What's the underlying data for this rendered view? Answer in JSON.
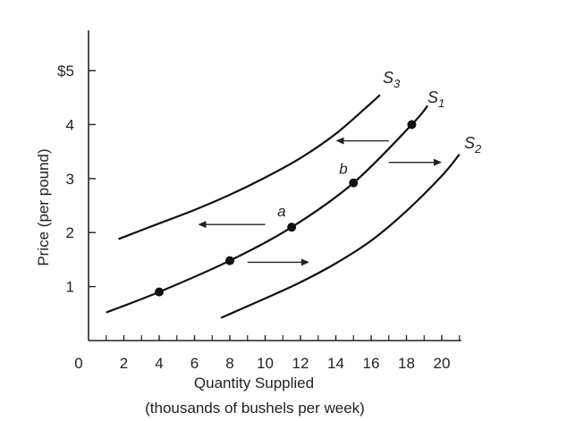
{
  "chart_data": {
    "type": "line",
    "xlabel": "Quantity Supplied",
    "xlabel_sub": "(thousands of bushels per week)",
    "ylabel": "Price (per pound)",
    "origin_label": "0",
    "xlim": [
      0,
      21
    ],
    "ylim": [
      0,
      5.7
    ],
    "x_ticks": [
      2,
      4,
      6,
      8,
      10,
      12,
      14,
      16,
      18,
      20
    ],
    "x_tick_labels": [
      "2",
      "4",
      "6",
      "8",
      "10",
      "12",
      "14",
      "16",
      "18",
      "20"
    ],
    "y_ticks": [
      1,
      2,
      3,
      4,
      5
    ],
    "y_tick_labels": [
      "1",
      "2",
      "3",
      "4",
      "$5"
    ],
    "grid": false,
    "series": [
      {
        "name": "S",
        "name_sub": "3",
        "color": "#111111",
        "x": [
          1.7,
          4,
          6,
          8,
          10,
          12,
          14,
          16,
          16.5
        ],
        "y": [
          1.88,
          2.17,
          2.42,
          2.7,
          3.02,
          3.38,
          3.83,
          4.4,
          4.55
        ]
      },
      {
        "name": "S",
        "name_sub": "1",
        "color": "#111111",
        "x": [
          1,
          4,
          8,
          11.5,
          15,
          18.3,
          19.2
        ],
        "y": [
          0.52,
          0.9,
          1.48,
          2.1,
          2.92,
          4.0,
          4.35
        ]
      },
      {
        "name": "S",
        "name_sub": "2",
        "color": "#111111",
        "x": [
          7.5,
          10,
          12,
          14,
          16,
          18,
          20,
          21
        ],
        "y": [
          0.42,
          0.78,
          1.08,
          1.43,
          1.85,
          2.4,
          3.05,
          3.45
        ]
      }
    ],
    "points": [
      {
        "x": 4,
        "y": 0.9,
        "label": ""
      },
      {
        "x": 8,
        "y": 1.48,
        "label": ""
      },
      {
        "x": 11.5,
        "y": 2.1,
        "label": "a"
      },
      {
        "x": 15,
        "y": 2.92,
        "label": "b"
      },
      {
        "x": 18.3,
        "y": 4.0,
        "label": ""
      }
    ],
    "arrows": [
      {
        "from": [
          17,
          3.7
        ],
        "to": [
          14,
          3.7
        ]
      },
      {
        "from": [
          10,
          2.15
        ],
        "to": [
          6.2,
          2.15
        ]
      },
      {
        "from": [
          17,
          3.3
        ],
        "to": [
          20,
          3.3
        ]
      },
      {
        "from": [
          9,
          1.45
        ],
        "to": [
          12.5,
          1.45
        ]
      }
    ]
  }
}
